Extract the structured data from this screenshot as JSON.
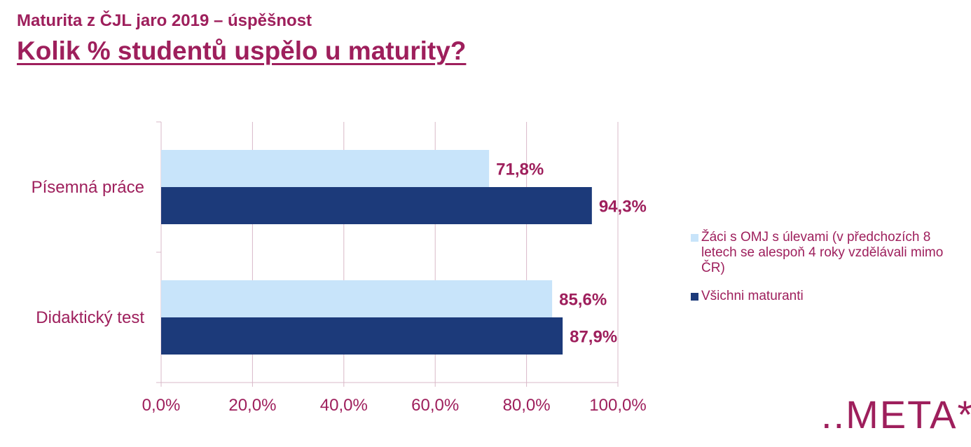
{
  "header": {
    "subtitle": "Maturita z ČJL jaro 2019 – úspěšnost",
    "title": "Kolik % studentů uspělo u maturity?"
  },
  "chart_data": {
    "type": "bar",
    "orientation": "horizontal",
    "categories": [
      "Písemná práce",
      "Didaktický test"
    ],
    "series": [
      {
        "name": "Žáci s OMJ s úlevami (v předchozích 8 letech se alespoň 4 roky vzdělávali mimo ČR)",
        "values": [
          71.8,
          85.6
        ],
        "labels": [
          "71,8%",
          "85,6%"
        ],
        "color": "#c8e4fa"
      },
      {
        "name": "Všichni maturanti",
        "values": [
          94.3,
          87.9
        ],
        "labels": [
          "94,3%",
          "87,9%"
        ],
        "color": "#1c3a7a"
      }
    ],
    "xlim": [
      0,
      100
    ],
    "x_ticks": [
      0,
      20,
      40,
      60,
      80,
      100
    ],
    "x_tick_labels": [
      "0,0%",
      "20,0%",
      "40,0%",
      "60,0%",
      "80,0%",
      "100,0%"
    ],
    "grid": true,
    "legend_position": "right",
    "label_color": "#9e1f5c",
    "grid_color": "#d9b8c8"
  },
  "logo": {
    "text": "..META*˘"
  }
}
